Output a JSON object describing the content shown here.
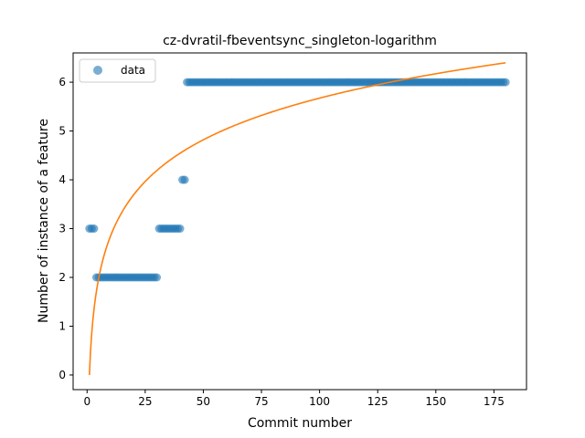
{
  "chart_data": {
    "type": "scatter",
    "title": "cz-dvratil-fbeventsync_singleton-logarithm",
    "xlabel": "Commit number",
    "ylabel": "Number of instance of a feature",
    "xlim": [
      -6,
      189
    ],
    "ylim": [
      -0.3,
      6.6
    ],
    "xticks": [
      0,
      25,
      50,
      75,
      100,
      125,
      150,
      175
    ],
    "yticks": [
      0,
      1,
      2,
      3,
      4,
      5,
      6
    ],
    "grid": false,
    "legend": {
      "placement": "upper left",
      "entries": [
        "data"
      ]
    },
    "colors": {
      "data": "#1f77b4",
      "fit": "#ff7f0e"
    },
    "series": [
      {
        "name": "data",
        "kind": "scatter",
        "segments": [
          {
            "x_from": 1,
            "x_to": 3,
            "y": 3
          },
          {
            "x_from": 4,
            "x_to": 30,
            "y": 2
          },
          {
            "x_from": 31,
            "x_to": 40,
            "y": 3
          },
          {
            "x_from": 41,
            "x_to": 42,
            "y": 4
          },
          {
            "x_from": 43,
            "x_to": 180,
            "y": 6
          }
        ]
      },
      {
        "kind": "line",
        "model": "y = a * ln(x)",
        "a": 1.232,
        "x_from": 1,
        "x_to": 180
      }
    ]
  }
}
